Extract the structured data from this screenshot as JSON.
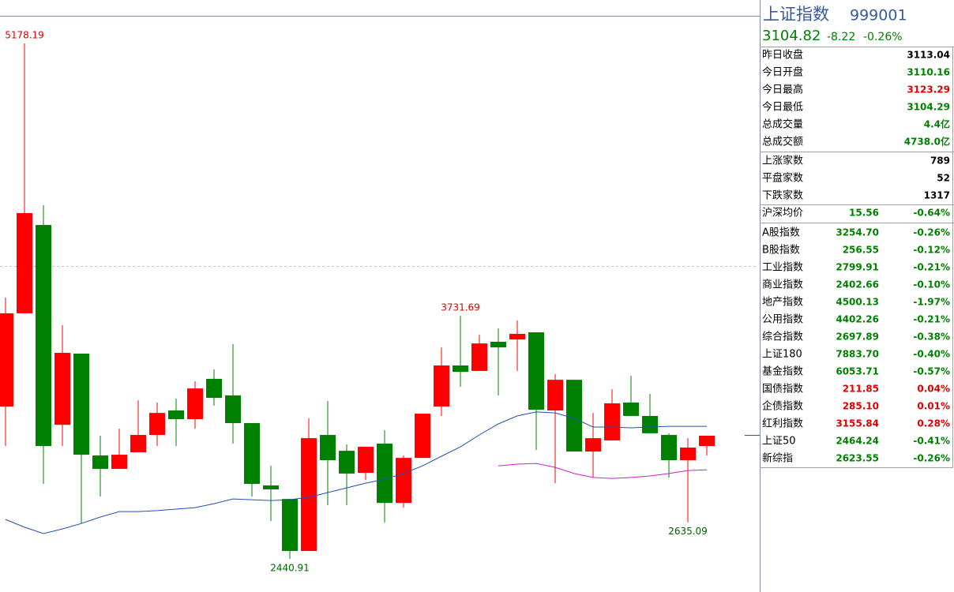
{
  "chart_data": {
    "type": "candlestick",
    "ylim": [
      2270,
      5320
    ],
    "up_color": "#ff0000",
    "down_color": "#008000",
    "candles": [
      {
        "open": 3250,
        "high": 3828,
        "low": 3040,
        "close": 3745
      },
      {
        "open": 3745,
        "high": 5178.19,
        "low": 3745,
        "close": 4277
      },
      {
        "open": 4214,
        "high": 4319,
        "low": 2839,
        "close": 3040
      },
      {
        "open": 3153,
        "high": 3682,
        "low": 3040,
        "close": 3535
      },
      {
        "open": 3531,
        "high": 3531,
        "low": 2629,
        "close": 2994
      },
      {
        "open": 2990,
        "high": 3095,
        "low": 2772,
        "close": 2919
      },
      {
        "open": 2919,
        "high": 3132,
        "low": 2919,
        "close": 2994
      },
      {
        "open": 3007,
        "high": 3283,
        "low": 3007,
        "close": 3099
      },
      {
        "open": 3099,
        "high": 3271,
        "low": 3040,
        "close": 3216
      },
      {
        "open": 3229,
        "high": 3292,
        "low": 3040,
        "close": 3183
      },
      {
        "open": 3183,
        "high": 3384,
        "low": 3132,
        "close": 3346
      },
      {
        "open": 3397,
        "high": 3447,
        "low": 3254,
        "close": 3296
      },
      {
        "open": 3309,
        "high": 3581,
        "low": 3053,
        "close": 3162
      },
      {
        "open": 3162,
        "high": 3162,
        "low": 2772,
        "close": 2839
      },
      {
        "open": 2831,
        "high": 2935,
        "low": 2642,
        "close": 2810
      },
      {
        "open": 2759,
        "high": 2759,
        "low": 2440.91,
        "close": 2483
      },
      {
        "open": 2483,
        "high": 3187,
        "low": 2483,
        "close": 3082
      },
      {
        "open": 3099,
        "high": 3279,
        "low": 2726,
        "close": 2965
      },
      {
        "open": 3015,
        "high": 3049,
        "low": 2726,
        "close": 2894
      },
      {
        "open": 2898,
        "high": 3036,
        "low": 2860,
        "close": 3036
      },
      {
        "open": 3053,
        "high": 3124,
        "low": 2634,
        "close": 2738
      },
      {
        "open": 2738,
        "high": 2990,
        "low": 2713,
        "close": 2977
      },
      {
        "open": 2977,
        "high": 3212,
        "low": 2977,
        "close": 3212
      },
      {
        "open": 3250,
        "high": 3564,
        "low": 3200,
        "close": 3468
      },
      {
        "open": 3468,
        "high": 3731.69,
        "low": 3355,
        "close": 3434
      },
      {
        "open": 3439,
        "high": 3631,
        "low": 3439,
        "close": 3585
      },
      {
        "open": 3594,
        "high": 3665,
        "low": 3309,
        "close": 3564
      },
      {
        "open": 3606,
        "high": 3707,
        "low": 3439,
        "close": 3636
      },
      {
        "open": 3644,
        "high": 3644,
        "low": 3019,
        "close": 3233
      },
      {
        "open": 3229,
        "high": 3422,
        "low": 2843,
        "close": 3392
      },
      {
        "open": 3392,
        "high": 3392,
        "low": 3011,
        "close": 3011
      },
      {
        "open": 3011,
        "high": 3216,
        "low": 2873,
        "close": 3082
      },
      {
        "open": 3070,
        "high": 3342,
        "low": 3070,
        "close": 3267
      },
      {
        "open": 3271,
        "high": 3413,
        "low": 3200,
        "close": 3200
      },
      {
        "open": 3200,
        "high": 3317,
        "low": 3108,
        "close": 3108
      },
      {
        "open": 3099,
        "high": 3108,
        "low": 2873,
        "close": 2965
      },
      {
        "open": 2965,
        "high": 3082,
        "low": 2635.09,
        "close": 3032
      },
      {
        "open": 3040,
        "high": 3095,
        "low": 2990,
        "close": 3095
      }
    ],
    "annotations": [
      {
        "index": 1,
        "field": "high",
        "color": "#e00000"
      },
      {
        "index": 24,
        "field": "high",
        "color": "#e00000"
      },
      {
        "index": 15,
        "field": "low",
        "color": "#006000"
      },
      {
        "index": 36,
        "field": "low",
        "color": "#006000"
      }
    ],
    "series": [
      {
        "color": "#2050b0",
        "values": [
          2650,
          2609,
          2575,
          2600,
          2629,
          2663,
          2692,
          2692,
          2697,
          2705,
          2713,
          2734,
          2759,
          2755,
          2751,
          2755,
          2768,
          2793,
          2818,
          2843,
          2864,
          2894,
          2935,
          2986,
          3036,
          3099,
          3158,
          3200,
          3221,
          3216,
          3187,
          3141,
          3141,
          3137,
          3141,
          3145,
          3145,
          3145
        ]
      },
      {
        "color": "#d020d0",
        "values": [
          null,
          null,
          null,
          null,
          null,
          null,
          null,
          null,
          null,
          null,
          null,
          null,
          null,
          null,
          null,
          null,
          null,
          null,
          null,
          null,
          null,
          null,
          null,
          null,
          null,
          null,
          2935,
          2944,
          2948,
          2927,
          2894,
          2873,
          2868,
          2873,
          2881,
          2894,
          2910,
          2914
        ]
      }
    ]
  },
  "panel": {
    "name": "上证指数",
    "code": "999001",
    "price": "3104.82",
    "change": "-8.22",
    "change_pct": "-0.26%",
    "color": "#008000",
    "quote_rows": [
      {
        "label": "昨日收盘",
        "value": "3113.04",
        "color": "#000000"
      },
      {
        "label": "今日开盘",
        "value": "3110.16",
        "color": "#008000"
      },
      {
        "label": "今日最高",
        "value": "3123.29",
        "color": "#e00000"
      },
      {
        "label": "今日最低",
        "value": "3104.29",
        "color": "#008000"
      },
      {
        "label": "总成交量",
        "value": "4.4亿",
        "color": "#008000"
      },
      {
        "label": "总成交额",
        "value": "4738.0亿",
        "color": "#008000"
      }
    ],
    "breadth_rows": [
      {
        "label": "上涨家数",
        "value": "789",
        "color": "#000000"
      },
      {
        "label": "平盘家数",
        "value": "52",
        "color": "#000000"
      },
      {
        "label": "下跌家数",
        "value": "1317",
        "color": "#000000"
      }
    ],
    "average": {
      "label": "沪深均价",
      "value": "15.56",
      "change": "-0.64%",
      "color": "#008000"
    },
    "index_rows": [
      {
        "label": "A股指数",
        "value": "3254.70",
        "change": "-0.26%",
        "color": "#008000"
      },
      {
        "label": "B股指数",
        "value": "256.55",
        "change": "-0.12%",
        "color": "#008000"
      },
      {
        "label": "工业指数",
        "value": "2799.91",
        "change": "-0.21%",
        "color": "#008000"
      },
      {
        "label": "商业指数",
        "value": "2402.66",
        "change": "-0.10%",
        "color": "#008000"
      },
      {
        "label": "地产指数",
        "value": "4500.13",
        "change": "-1.97%",
        "color": "#008000"
      },
      {
        "label": "公用指数",
        "value": "4402.26",
        "change": "-0.21%",
        "color": "#008000"
      },
      {
        "label": "综合指数",
        "value": "2697.89",
        "change": "-0.38%",
        "color": "#008000"
      },
      {
        "label": "上证180",
        "value": "7883.70",
        "change": "-0.40%",
        "color": "#008000"
      },
      {
        "label": "基金指数",
        "value": "6053.71",
        "change": "-0.57%",
        "color": "#008000"
      },
      {
        "label": "国债指数",
        "value": "211.85",
        "change": "0.04%",
        "color": "#e00000"
      },
      {
        "label": "企债指数",
        "value": "285.10",
        "change": "0.01%",
        "color": "#e00000"
      },
      {
        "label": "红利指数",
        "value": "3155.84",
        "change": "0.28%",
        "color": "#e00000"
      },
      {
        "label": "上证50",
        "value": "2464.24",
        "change": "-0.41%",
        "color": "#008000"
      },
      {
        "label": "新综指",
        "value": "2623.55",
        "change": "-0.26%",
        "color": "#008000"
      }
    ]
  }
}
